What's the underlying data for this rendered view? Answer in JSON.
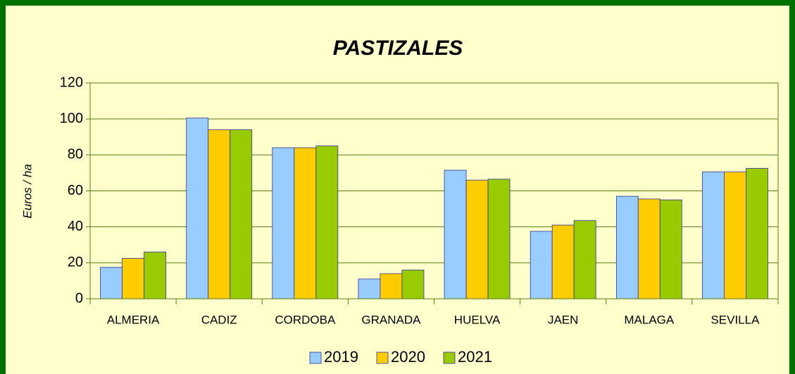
{
  "chart_data": {
    "type": "bar",
    "title": "PASTIZALES",
    "y_label": "Euros / ha",
    "categories": [
      "ALMERIA",
      "CADIZ",
      "CORDOBA",
      "GRANADA",
      "HUELVA",
      "JAEN",
      "MALAGA",
      "SEVILLA"
    ],
    "series": [
      {
        "name": "2019",
        "color": "#99ccff",
        "values": [
          17.5,
          100.5,
          84,
          11,
          71.5,
          37.5,
          57,
          70.5
        ]
      },
      {
        "name": "2020",
        "color": "#ffcc00",
        "values": [
          22.5,
          94,
          84,
          14,
          66,
          41,
          55.5,
          70.5
        ]
      },
      {
        "name": "2021",
        "color": "#99cc00",
        "values": [
          26,
          94,
          85,
          16,
          66.5,
          43.5,
          55,
          72.5
        ]
      }
    ],
    "ylim": [
      0,
      120
    ],
    "yticks": [
      0,
      20,
      40,
      60,
      80,
      100,
      120
    ],
    "grid": true,
    "legend": "bottom"
  }
}
